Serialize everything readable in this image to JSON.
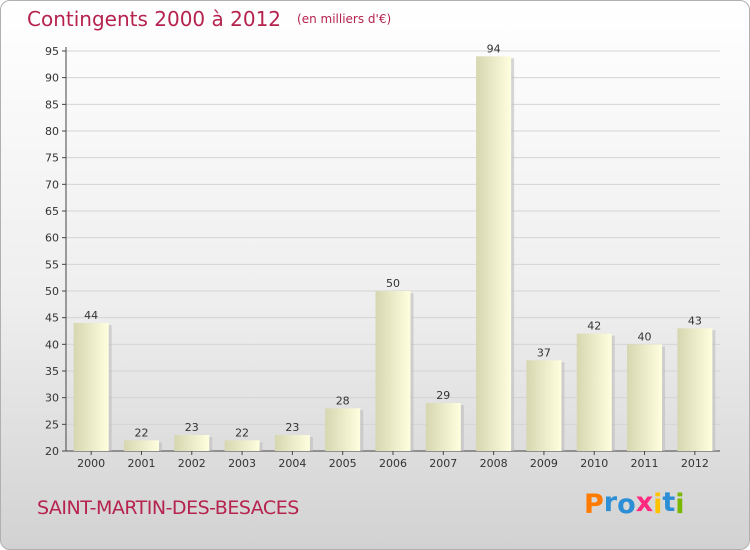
{
  "header": {
    "title": "Contingents 2000 à 2012",
    "unit": "(en milliers d'€)"
  },
  "footer": {
    "town": "SAINT-MARTIN-DES-BESACES",
    "brand": "Proxiti"
  },
  "colors": {
    "title": "#b5234e",
    "bar_light": "#ffffe0",
    "bar_dark": "#d6d6b0",
    "brand_letters": [
      "#ff7a00",
      "#2c8fd6",
      "#2c8fd6",
      "#ff2a7f",
      "#ffc200",
      "#2c8fd6",
      "#7ab800"
    ]
  },
  "chart_data": {
    "type": "bar",
    "title": "Contingents 2000 à 2012",
    "subtitle": "(en milliers d'€)",
    "categories": [
      "2000",
      "2001",
      "2002",
      "2003",
      "2004",
      "2005",
      "2006",
      "2007",
      "2008",
      "2009",
      "2010",
      "2011",
      "2012"
    ],
    "values": [
      44,
      22,
      23,
      22,
      23,
      28,
      50,
      29,
      94,
      37,
      42,
      40,
      43
    ],
    "ylim": [
      20,
      95
    ],
    "yticks": [
      20,
      25,
      30,
      35,
      40,
      45,
      50,
      55,
      60,
      65,
      70,
      75,
      80,
      85,
      90,
      95
    ],
    "grid": true,
    "xlabel": "",
    "ylabel": ""
  }
}
